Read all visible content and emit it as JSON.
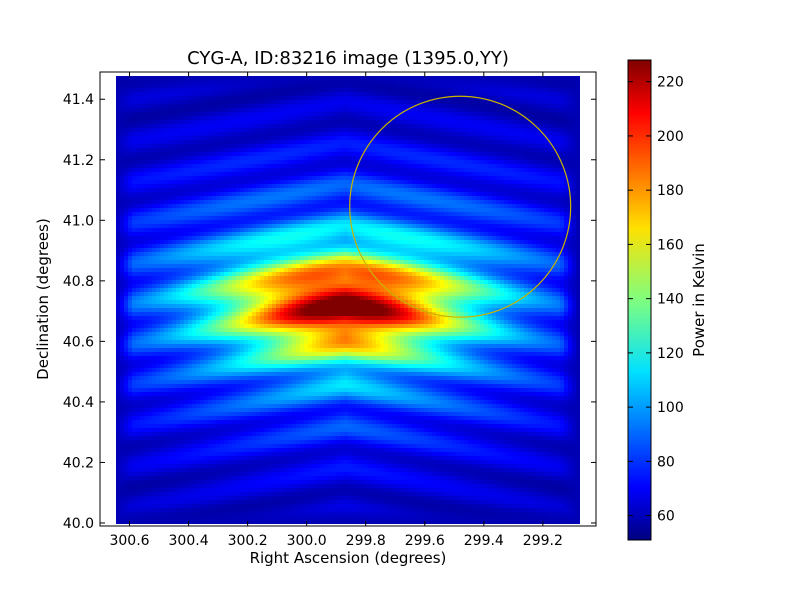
{
  "chart_data": {
    "type": "heatmap",
    "title": "CYG-A, ID:83216 image (1395.0,YY)",
    "xlabel": "Right Ascension (degrees)",
    "ylabel": "Declination (degrees)",
    "colorbar_label": "Power in Kelvin",
    "xlim": [
      300.7,
      299.02
    ],
    "ylim": [
      39.99,
      41.49
    ],
    "x_ticks": [
      300.6,
      300.4,
      300.2,
      300.0,
      299.8,
      299.6,
      299.4,
      299.2
    ],
    "x_tick_labels": [
      "300.6",
      "300.4",
      "300.2",
      "300.0",
      "299.8",
      "299.6",
      "299.4",
      "299.2"
    ],
    "y_ticks": [
      40.0,
      40.2,
      40.4,
      40.6,
      40.8,
      41.0,
      41.2,
      41.4
    ],
    "y_tick_labels": [
      "40.0",
      "40.2",
      "40.4",
      "40.6",
      "40.8",
      "41.0",
      "41.2",
      "41.4"
    ],
    "colorbar_range": [
      51,
      228
    ],
    "colorbar_ticks": [
      60,
      80,
      100,
      120,
      140,
      160,
      180,
      200,
      220
    ],
    "colorbar_tick_labels": [
      "60",
      "80",
      "100",
      "120",
      "140",
      "160",
      "180",
      "200",
      "220"
    ],
    "colormap": "jet",
    "grid": false,
    "peak": {
      "ra": 299.87,
      "dec": 40.72,
      "value": 228
    },
    "peak_sigma_ra_deg": 0.27,
    "peak_sigma_dec_deg": 0.11,
    "background_level": 60,
    "stripes": {
      "spacing_dec_deg": 0.135,
      "amplitude": 14,
      "orientation": "horizontal, chevron-shaped (pointing toward decreasing RA)"
    },
    "mapped_region": {
      "ra_range": [
        300.65,
        299.08
      ],
      "dec_range": [
        40.0,
        41.48
      ],
      "edge_level": 58
    },
    "annotation_circle": {
      "center_ra": 299.48,
      "center_dec": 41.045,
      "radius_dec_deg": 0.365,
      "color": "#c8b400"
    }
  }
}
